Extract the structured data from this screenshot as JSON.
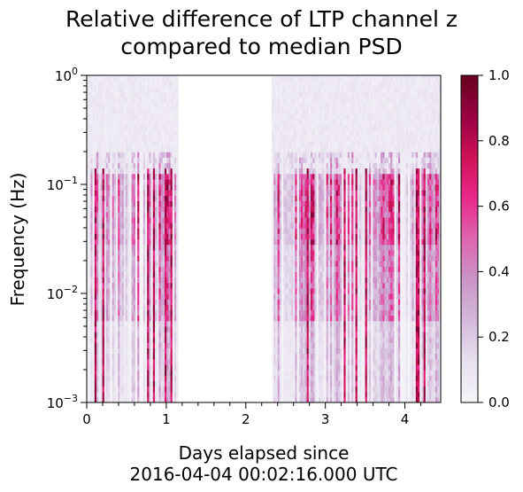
{
  "title_line1": "Relative difference of LTP channel z",
  "title_line2": "compared to median PSD",
  "chart_data": {
    "type": "heatmap",
    "title": "Relative difference of LTP channel z compared to median PSD",
    "xlabel_line1": "Days elapsed since",
    "xlabel_line2": "2016-04-04 00:02:16.000 UTC",
    "ylabel": "Frequency (Hz)",
    "x_range": [
      0,
      4.45
    ],
    "y_range": [
      0.001,
      1
    ],
    "y_scale": "log",
    "x_ticks": [
      {
        "value": 0,
        "label": "0"
      },
      {
        "value": 1,
        "label": "1"
      },
      {
        "value": 2,
        "label": "2"
      },
      {
        "value": 3,
        "label": "3"
      },
      {
        "value": 4,
        "label": "4"
      }
    ],
    "y_ticks": [
      {
        "value": 0.001,
        "label": "10",
        "exp": "−3"
      },
      {
        "value": 0.01,
        "label": "10",
        "exp": "−2"
      },
      {
        "value": 0.1,
        "label": "10",
        "exp": "−1"
      },
      {
        "value": 1,
        "label": "10",
        "exp": "0"
      }
    ],
    "data_gap_days": [
      1.15,
      2.32
    ],
    "colorbar": {
      "range": [
        0,
        1
      ],
      "colormap": "PuRd",
      "ticks": [
        {
          "value": 0.0,
          "label": "0.0"
        },
        {
          "value": 0.2,
          "label": "0.2"
        },
        {
          "value": 0.4,
          "label": "0.4"
        },
        {
          "value": 0.6,
          "label": "0.6"
        },
        {
          "value": 0.8,
          "label": "0.8"
        },
        {
          "value": 1.0,
          "label": "1.0"
        }
      ]
    },
    "colors": [
      "#f7f4f9",
      "#e7e1ef",
      "#d4b9da",
      "#c994c7",
      "#df65b0",
      "#e7298a",
      "#ce1256",
      "#980043",
      "#67001f"
    ]
  }
}
